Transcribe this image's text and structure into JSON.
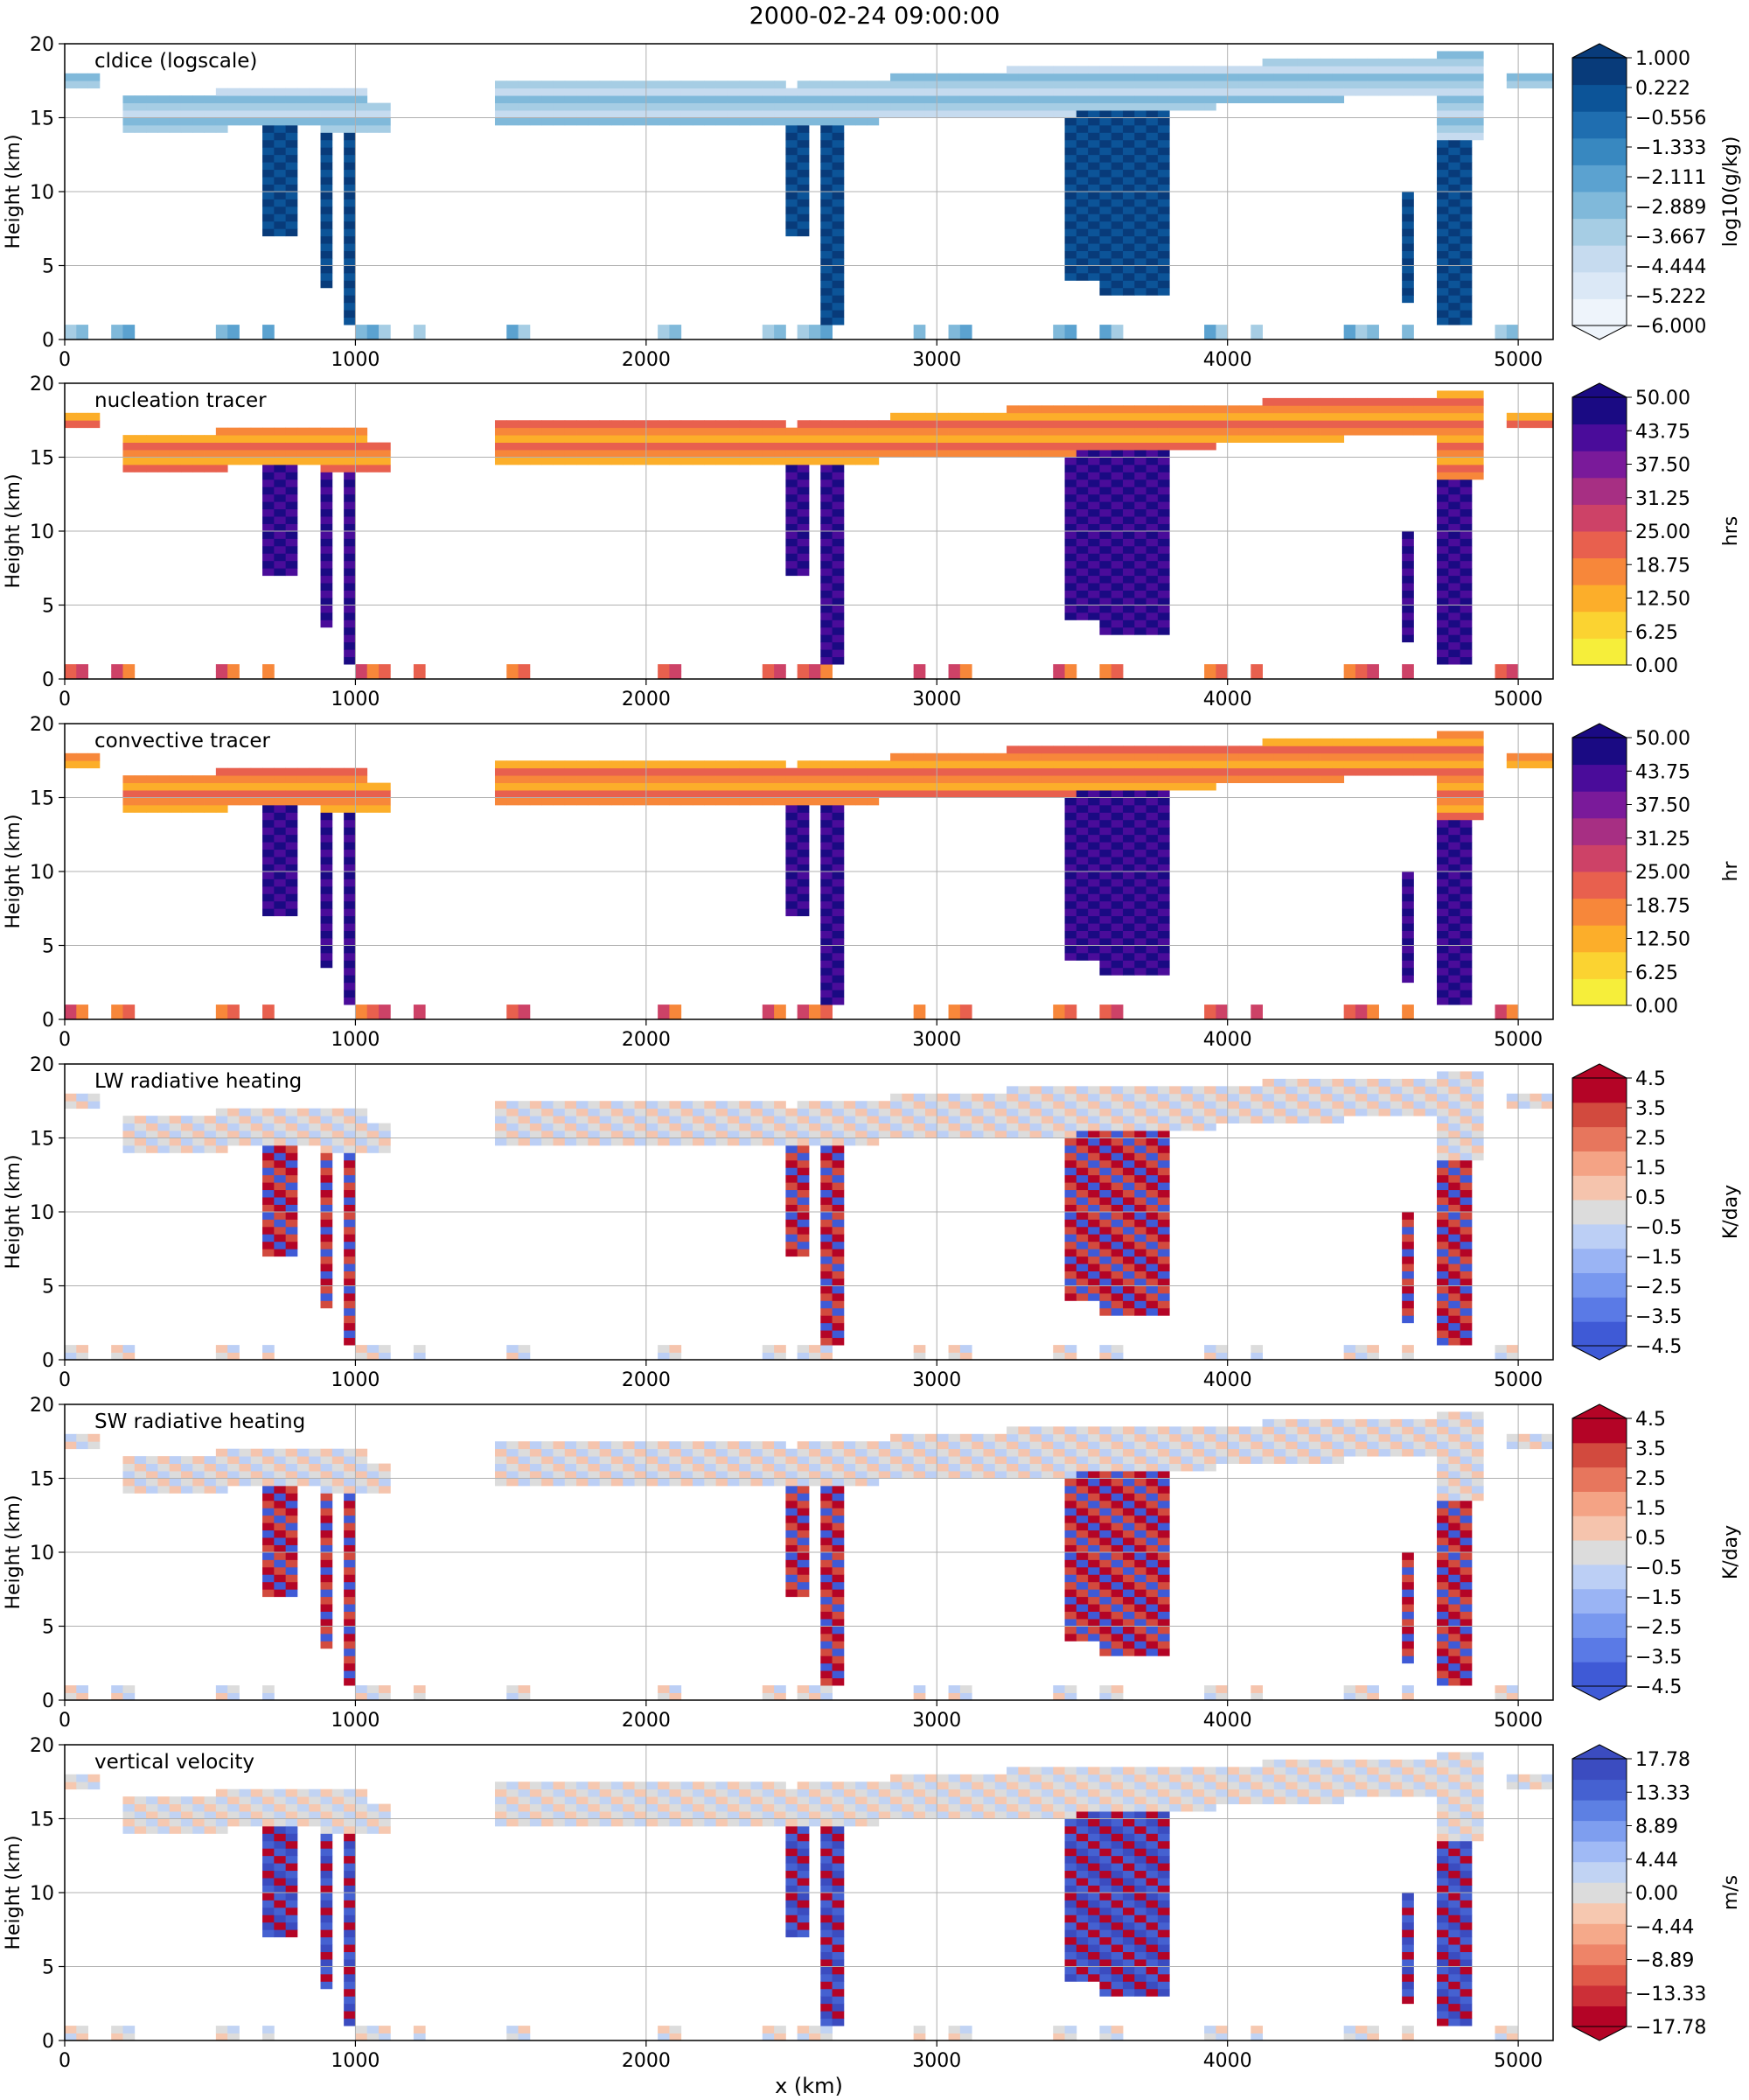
{
  "figure": {
    "title": "2000-02-24 09:00:00",
    "xlabel": "x (km)"
  },
  "chart_data": [
    {
      "type": "heatmap",
      "panel_label": "cldice (logscale)",
      "xlabel": "",
      "ylabel": "Height (km)",
      "xlim": [
        0,
        5120
      ],
      "ylim": [
        0,
        20
      ],
      "xticks": [
        0,
        1000,
        2000,
        3000,
        4000,
        5000
      ],
      "yticks": [
        0,
        5,
        10,
        15,
        20
      ],
      "grid": true,
      "colorbar": {
        "label": "log10(g/kg)",
        "ticks": [
          "1.000",
          "0.222",
          "−0.556",
          "−1.333",
          "−2.111",
          "−2.889",
          "−3.667",
          "−4.444",
          "−5.222",
          "−6.000"
        ],
        "colors": [
          "#eef4fb",
          "#dbe8f6",
          "#c6dbef",
          "#a6cde4",
          "#80b9da",
          "#5ba2d0",
          "#3888c0",
          "#1f6eb0",
          "#0c5498",
          "#083b7a"
        ],
        "extend": "both"
      },
      "colormap": "Blues",
      "vmin": -6.0,
      "vmax": 1.0
    },
    {
      "type": "heatmap",
      "panel_label": "nucleation tracer",
      "xlabel": "",
      "ylabel": "Height (km)",
      "xlim": [
        0,
        5120
      ],
      "ylim": [
        0,
        20
      ],
      "xticks": [
        0,
        1000,
        2000,
        3000,
        4000,
        5000
      ],
      "yticks": [
        0,
        5,
        10,
        15,
        20
      ],
      "grid": true,
      "colorbar": {
        "label": "hrs",
        "ticks": [
          "50.00",
          "43.75",
          "37.50",
          "31.25",
          "25.00",
          "18.75",
          "12.50",
          "6.25",
          "0.00"
        ],
        "colors": [
          "#f6ee3a",
          "#fbd331",
          "#fcae2a",
          "#f7873a",
          "#e8604e",
          "#cd4267",
          "#a72f83",
          "#7a1a9a",
          "#4a0c9a",
          "#1a0a83"
        ],
        "extend": "max"
      },
      "colormap": "plasma_r",
      "vmin": 0,
      "vmax": 50
    },
    {
      "type": "heatmap",
      "panel_label": "convective tracer",
      "xlabel": "",
      "ylabel": "Height (km)",
      "xlim": [
        0,
        5120
      ],
      "ylim": [
        0,
        20
      ],
      "xticks": [
        0,
        1000,
        2000,
        3000,
        4000,
        5000
      ],
      "yticks": [
        0,
        5,
        10,
        15,
        20
      ],
      "grid": true,
      "colorbar": {
        "label": "hr",
        "ticks": [
          "50.00",
          "43.75",
          "37.50",
          "31.25",
          "25.00",
          "18.75",
          "12.50",
          "6.25",
          "0.00"
        ],
        "colors": [
          "#f6ee3a",
          "#fbd331",
          "#fcae2a",
          "#f7873a",
          "#e8604e",
          "#cd4267",
          "#a72f83",
          "#7a1a9a",
          "#4a0c9a",
          "#1a0a83"
        ],
        "extend": "max"
      },
      "colormap": "plasma_r",
      "vmin": 0,
      "vmax": 50
    },
    {
      "type": "heatmap",
      "panel_label": "LW radiative heating",
      "xlabel": "",
      "ylabel": "Height (km)",
      "xlim": [
        0,
        5120
      ],
      "ylim": [
        0,
        20
      ],
      "xticks": [
        0,
        1000,
        2000,
        3000,
        4000,
        5000
      ],
      "yticks": [
        0,
        5,
        10,
        15,
        20
      ],
      "grid": true,
      "colorbar": {
        "label": "K/day",
        "ticks": [
          "4.5",
          "3.5",
          "2.5",
          "1.5",
          "0.5",
          "−0.5",
          "−1.5",
          "−2.5",
          "−3.5",
          "−4.5"
        ],
        "colors": [
          "#3f5ad6",
          "#5a7ae6",
          "#7898ef",
          "#9ab4f4",
          "#bccff5",
          "#dcdcdc",
          "#f5c4ad",
          "#f4a385",
          "#e7765d",
          "#d24a3e",
          "#b40426"
        ],
        "extend": "both"
      },
      "colormap": "coolwarm",
      "vmin": -4.5,
      "vmax": 4.5
    },
    {
      "type": "heatmap",
      "panel_label": "SW radiative heating",
      "xlabel": "",
      "ylabel": "Height (km)",
      "xlim": [
        0,
        5120
      ],
      "ylim": [
        0,
        20
      ],
      "xticks": [
        0,
        1000,
        2000,
        3000,
        4000,
        5000
      ],
      "yticks": [
        0,
        5,
        10,
        15,
        20
      ],
      "grid": true,
      "colorbar": {
        "label": "K/day",
        "ticks": [
          "4.5",
          "3.5",
          "2.5",
          "1.5",
          "0.5",
          "−0.5",
          "−1.5",
          "−2.5",
          "−3.5",
          "−4.5"
        ],
        "colors": [
          "#3f5ad6",
          "#5a7ae6",
          "#7898ef",
          "#9ab4f4",
          "#bccff5",
          "#dcdcdc",
          "#f5c4ad",
          "#f4a385",
          "#e7765d",
          "#d24a3e",
          "#b40426"
        ],
        "extend": "both"
      },
      "colormap": "coolwarm",
      "vmin": -4.5,
      "vmax": 4.5
    },
    {
      "type": "heatmap",
      "panel_label": "vertical velocity",
      "xlabel": "x (km)",
      "ylabel": "Height (km)",
      "xlim": [
        0,
        5120
      ],
      "ylim": [
        0,
        20
      ],
      "xticks": [
        0,
        1000,
        2000,
        3000,
        4000,
        5000
      ],
      "yticks": [
        0,
        5,
        10,
        15,
        20
      ],
      "grid": true,
      "colorbar": {
        "label": "m/s",
        "ticks": [
          "17.78",
          "13.33",
          "8.89",
          "4.44",
          "0.00",
          "−4.44",
          "−8.89",
          "−13.33",
          "−17.78"
        ],
        "colors": [
          "#b40426",
          "#cc2f37",
          "#e05a49",
          "#ee8468",
          "#f5a98a",
          "#f6c8b0",
          "#dcdcdc",
          "#c1d3f3",
          "#a0baf5",
          "#7e9eef",
          "#5d80e3",
          "#4561d1",
          "#3b4cc0"
        ],
        "extend": "both"
      },
      "colormap": "coolwarm_r",
      "vmin": -20,
      "vmax": 20
    }
  ]
}
